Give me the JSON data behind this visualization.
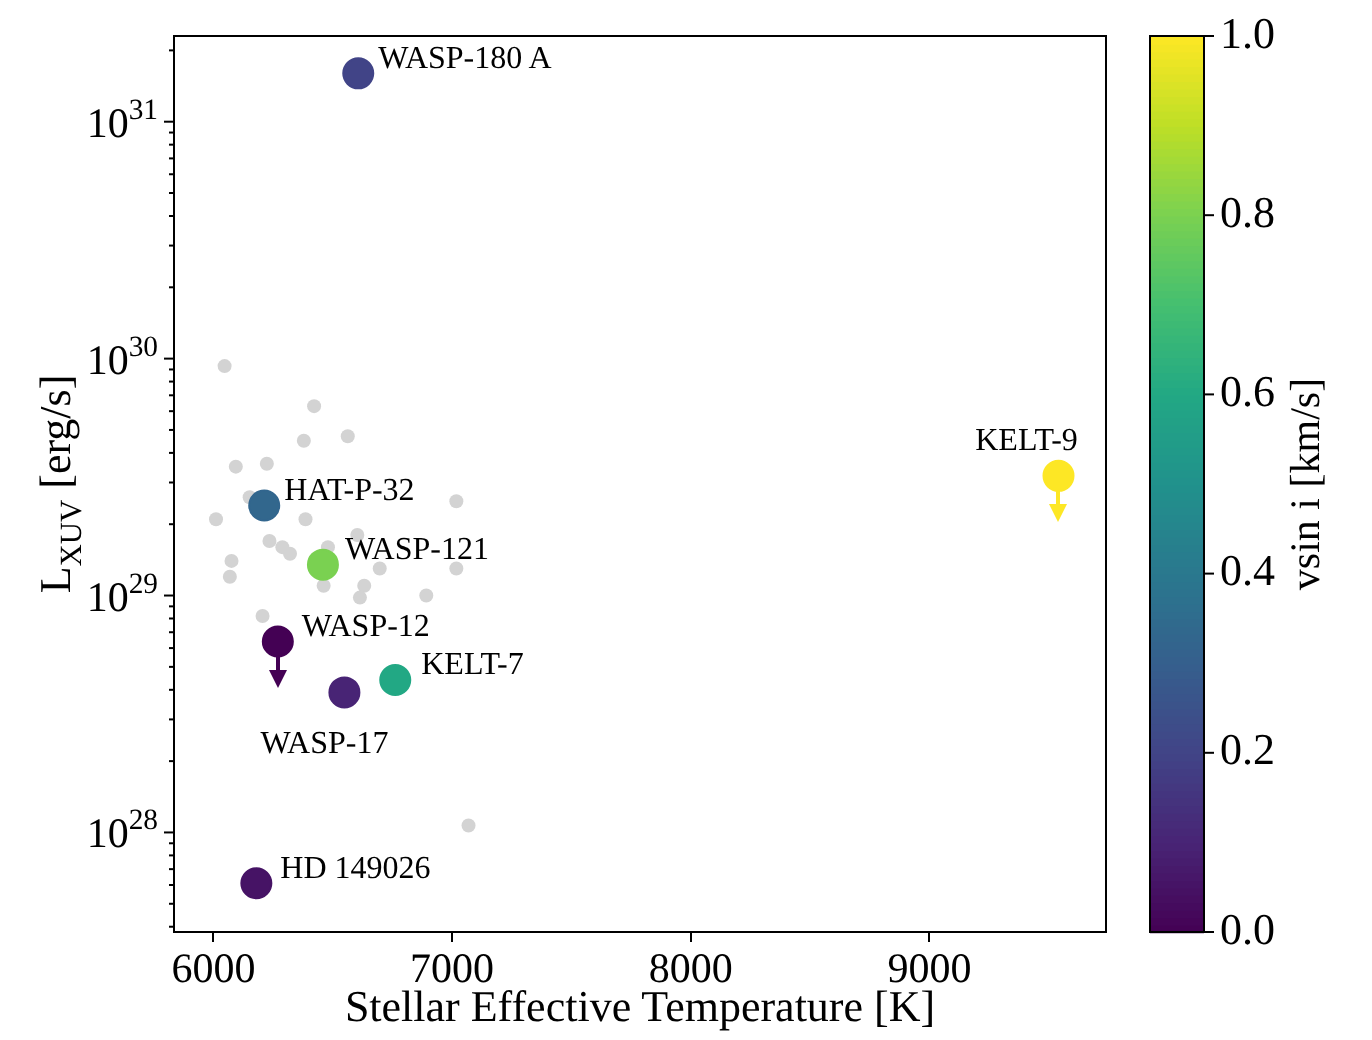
{
  "chart_data": {
    "type": "scatter",
    "xlabel": "Stellar Effective Temperature [K]",
    "ylabel": "L$_{XUV}$ [erg/s]",
    "clabel": "vsin i [km/s]",
    "log": "y",
    "grid": false,
    "legend": false,
    "marker": "circle",
    "xlim": [
      5835,
      9740
    ],
    "xticks": [
      6000,
      7000,
      8000,
      9000
    ],
    "ylim": [
      3.8e+27,
      2.3e+31
    ],
    "yticks": [
      {
        "value": 1e+28,
        "label": "10$^{28}$"
      },
      {
        "value": 1e+29,
        "label": "10$^{29}$"
      },
      {
        "value": 1e+30,
        "label": "10$^{30}$"
      },
      {
        "value": 1e+31,
        "label": "10$^{31}$"
      }
    ],
    "clim": [
      0,
      1
    ],
    "cticks": [
      {
        "value": 0,
        "label": "0.0"
      },
      0.2,
      0.4,
      0.6,
      0.8,
      {
        "value": 1,
        "label": "1.0"
      }
    ],
    "series": [
      {
        "color": "#d3d3d3",
        "x": [
          6047,
          6422,
          6379,
          6563,
          6094,
          6224,
          6152,
          6011,
          6386,
          7018,
          6235,
          6289,
          6321,
          6480,
          6076,
          6069,
          6697,
          7018,
          6462,
          6632,
          6614,
          6892,
          6206,
          7069,
          6603
        ],
        "values": [
          9.3e+29,
          6.3e+29,
          4.5e+29,
          4.7e+29,
          3.5e+29,
          3.6e+29,
          2.6e+29,
          2.1e+29,
          2.1e+29,
          2.5e+29,
          1.7e+29,
          1.6e+29,
          1.5e+29,
          1.6e+29,
          1.4e+29,
          1.2e+29,
          1.3e+29,
          1.3e+29,
          1.1e+29,
          1.1e+29,
          9.8e+28,
          1e+29,
          8.2e+28,
          1.07e+28,
          1.8e+29
        ]
      },
      {
        "x": [
          6607,
          6213,
          6459,
          6270,
          6549,
          6762,
          6180,
          9541
        ],
        "values": [
          1.6e+31,
          2.4e+29,
          1.35e+29,
          6.4e+28,
          3.9e+28,
          4.4e+28,
          6.1e+27,
          3.2e+29
        ],
        "cvalues": [
          0.2,
          0.33,
          0.8,
          0.0,
          0.1,
          0.6,
          0.05,
          1.0
        ],
        "colors": [
          "#414487",
          "#32668e",
          "#7ad151",
          "#440154",
          "#482475",
          "#22a884",
          "#461365",
          "#fde725"
        ]
      }
    ],
    "annotations": [
      {
        "text": "WASP-180 A",
        "x": 6607,
        "y": 1.6e+31
      },
      {
        "text": "HAT-P-32",
        "x": 6213,
        "y": 2.4e+29
      },
      {
        "text": "WASP-121",
        "x": 6459,
        "y": 1.35e+29
      },
      {
        "text": "WASP-12",
        "x": 6270,
        "y": 6.4e+28
      },
      {
        "text": "WASP-17",
        "x": 6549,
        "y": 3.9e+28
      },
      {
        "text": "KELT-7",
        "x": 6762,
        "y": 4.4e+28
      },
      {
        "text": "HD 149026",
        "x": 6180,
        "y": 6.1e+27
      },
      {
        "text": "KELT-9",
        "x": 9541,
        "y": 3.2e+29
      }
    ]
  }
}
